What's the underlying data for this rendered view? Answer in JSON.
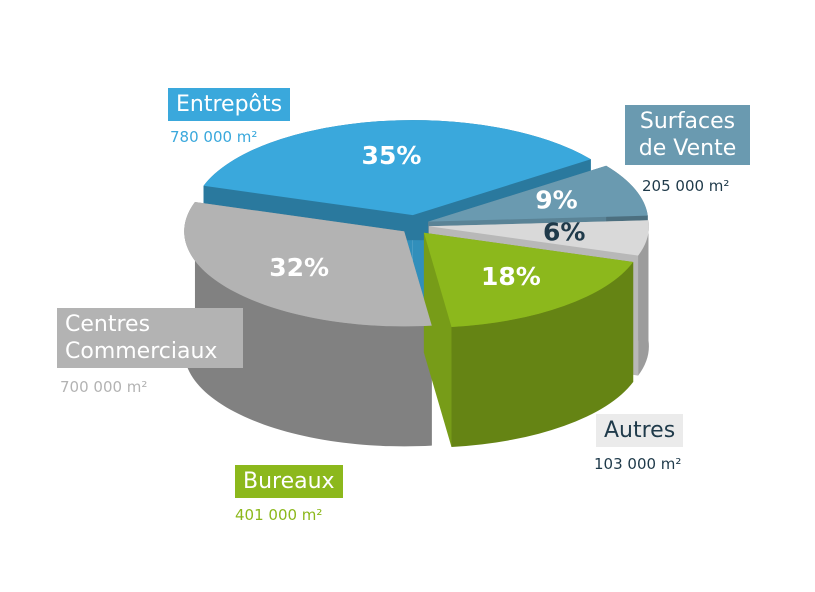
{
  "chart_data": {
    "type": "pie",
    "categories": [
      "Entrepôts",
      "Surfaces de Vente",
      "Autres",
      "Bureaux",
      "Centres Commerciaux"
    ],
    "values": [
      35,
      9,
      6,
      18,
      32
    ],
    "value_labels": [
      "35%",
      "9%",
      "6%",
      "18%",
      "32%"
    ],
    "areas": [
      "780 000 m²",
      "205 000 m²",
      "103 000 m²",
      "401 000 m²",
      "700 000 m²"
    ],
    "colors": [
      "#3aa8dc",
      "#6a9ab0",
      "#d9d9d9",
      "#8cb81c",
      "#b3b3b3"
    ]
  }
}
